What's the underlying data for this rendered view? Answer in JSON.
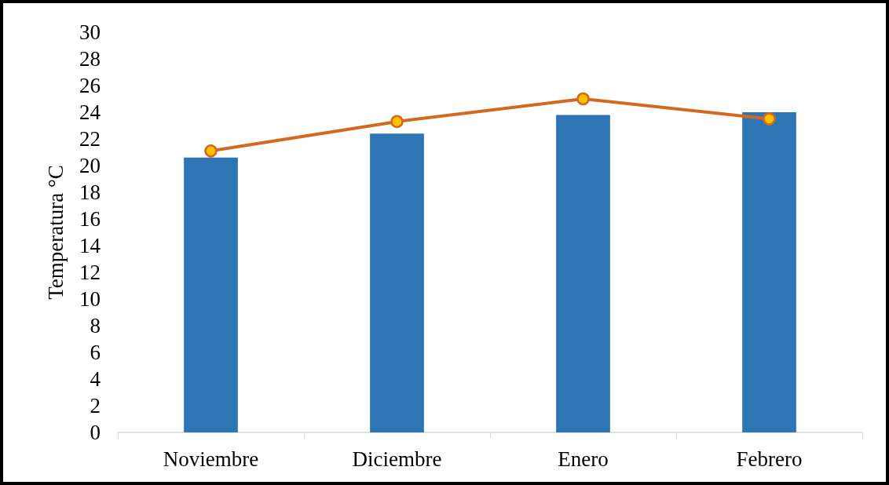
{
  "chart_data": {
    "type": "bar",
    "ylabel": "Temperatura °C",
    "categories": [
      "Noviembre",
      "Diciembre",
      "Enero",
      "Febrero"
    ],
    "series": [
      {
        "color": "#2e75b6",
        "values": [
          20.6,
          22.4,
          23.8,
          24.0
        ]
      },
      {
        "type": "line",
        "color": "#d2691e",
        "values": [
          21.1,
          23.3,
          25.0,
          23.5
        ],
        "marker": "circle",
        "line_style": "solid"
      }
    ],
    "ylim": [
      0,
      30
    ],
    "yticks": [
      0,
      2,
      4,
      6,
      8,
      10,
      12,
      14,
      16,
      18,
      20,
      22,
      24,
      26,
      28,
      30
    ],
    "grid": false
  }
}
